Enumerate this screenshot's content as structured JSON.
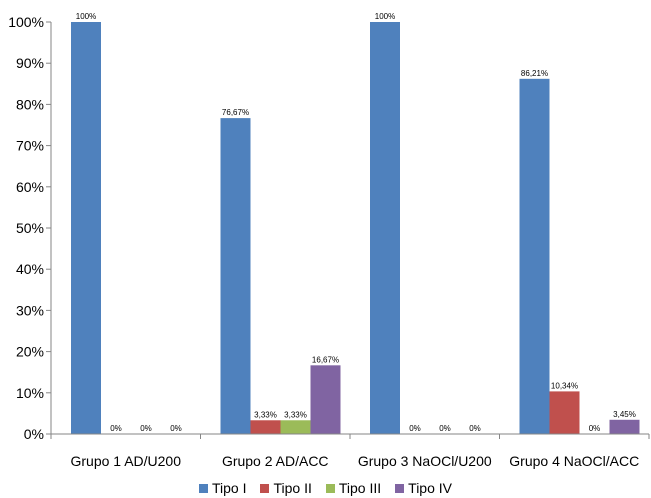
{
  "chart_data": {
    "type": "bar",
    "categories": [
      "Grupo 1 AD/U200",
      "Grupo 2 AD/ACC",
      "Grupo 3 NaOCl/U200",
      "Grupo 4 NaOCl/ACC"
    ],
    "series": [
      {
        "name": "Tipo I",
        "color": "#4F81BD",
        "values": [
          100,
          76.67,
          100,
          86.21
        ],
        "labels": [
          "100%",
          "76,67%",
          "100%",
          "86,21%"
        ]
      },
      {
        "name": "Tipo II",
        "color": "#C0504D",
        "values": [
          0,
          3.33,
          0,
          10.34
        ],
        "labels": [
          "0%",
          "3,33%",
          "0%",
          "10,34%"
        ]
      },
      {
        "name": "Tipo III",
        "color": "#9BBB59",
        "values": [
          0,
          3.33,
          0,
          0
        ],
        "labels": [
          "0%",
          "3,33%",
          "0%",
          "0%"
        ]
      },
      {
        "name": "Tipo IV",
        "color": "#8064A2",
        "values": [
          0,
          16.67,
          0,
          3.45
        ],
        "labels": [
          "0%",
          "16,67%",
          "0%",
          "3,45%"
        ]
      }
    ],
    "yticks": [
      "0%",
      "10%",
      "20%",
      "30%",
      "40%",
      "50%",
      "60%",
      "70%",
      "80%",
      "90%",
      "100%"
    ],
    "ylim": [
      0,
      100
    ],
    "grid": false,
    "legend": "bottom"
  }
}
